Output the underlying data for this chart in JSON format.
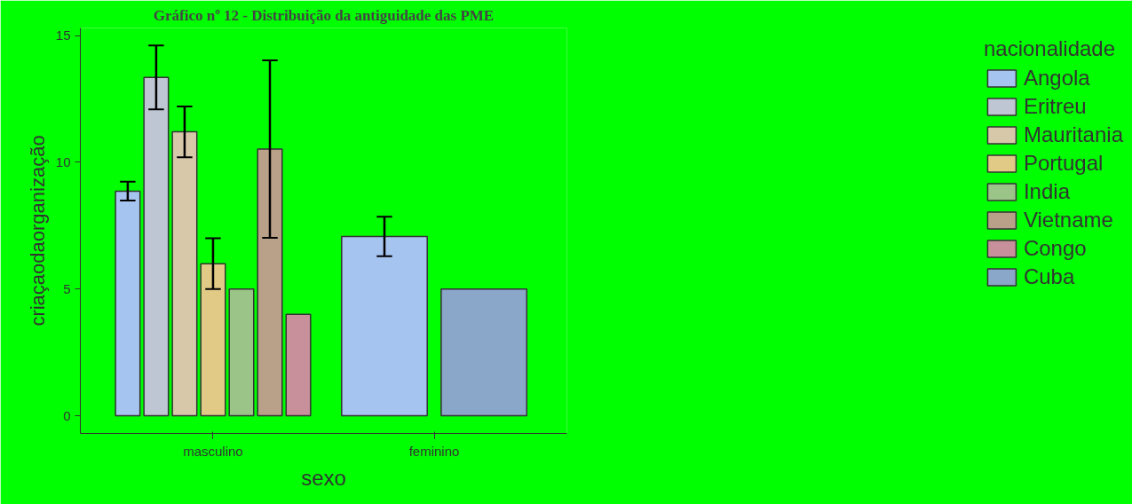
{
  "chart_data": {
    "type": "bar",
    "title": "Gráfico nº 12 - Distribuição da antiguidade das PME",
    "xlabel": "sexo",
    "ylabel": "criaçaodaorganização",
    "legend_title": "nacionalidade",
    "categories": [
      "masculino",
      "feminino"
    ],
    "series": [
      {
        "name": "Angola",
        "color": "#a6c4f0",
        "values": [
          8.86,
          7.07
        ],
        "errors": [
          0.37,
          0.78
        ]
      },
      {
        "name": "Eritreu",
        "color": "#bec5d3",
        "values": [
          13.35,
          null
        ],
        "errors": [
          1.26,
          null
        ]
      },
      {
        "name": "Mauritania",
        "color": "#d8c8aa",
        "values": [
          11.2,
          null
        ],
        "errors": [
          1.0,
          null
        ]
      },
      {
        "name": "Portugal",
        "color": "#e0ca86",
        "values": [
          6.0,
          null
        ],
        "errors": [
          1.0,
          null
        ]
      },
      {
        "name": "India",
        "color": "#9ac488",
        "values": [
          5.0,
          null
        ]
      },
      {
        "name": "Vietname",
        "color": "#b9a189",
        "values": [
          10.52,
          null
        ],
        "errors": [
          3.5,
          null
        ]
      },
      {
        "name": "Congo",
        "color": "#c8909a",
        "values": [
          4.0,
          null
        ]
      },
      {
        "name": "Cuba",
        "color": "#8aa6c8",
        "values": [
          null,
          5.0
        ]
      }
    ],
    "ylim": [
      -0.7,
      15.3
    ],
    "yticks": [
      0,
      5,
      10,
      15
    ],
    "grid": false,
    "legend": "right"
  }
}
